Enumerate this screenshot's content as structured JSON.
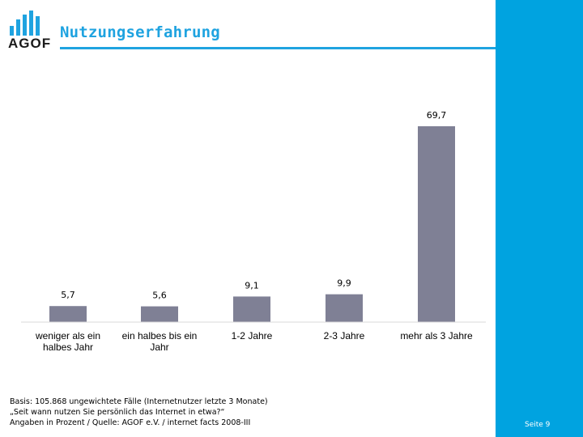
{
  "header": {
    "logo_text": "AGOF",
    "title": "Nutzungserfahrung"
  },
  "colors": {
    "accent": "#1fa3e0",
    "band": "#00a3e0",
    "bar": "#7f8095"
  },
  "chart_data": {
    "type": "bar",
    "title": "Nutzungserfahrung",
    "categories": [
      [
        "weniger als ein",
        "halbes Jahr"
      ],
      [
        "ein halbes bis ein",
        "Jahr"
      ],
      [
        "1-2 Jahre"
      ],
      [
        "2-3 Jahre"
      ],
      [
        "mehr als 3 Jahre"
      ]
    ],
    "values": [
      5.7,
      5.6,
      9.1,
      9.9,
      69.7
    ],
    "value_labels": [
      "5,7",
      "5,6",
      "9,1",
      "9,9",
      "69,7"
    ],
    "xlabel": "",
    "ylabel": "",
    "ylim": [
      0,
      69.7
    ],
    "grid": false
  },
  "footnote": {
    "line1": "Basis: 105.868 ungewichtete Fälle (Internetnutzer letzte 3 Monate)",
    "line2": "„Seit wann nutzen Sie persönlich das Internet in etwa?“",
    "line3": "Angaben in Prozent / Quelle: AGOF e.V. / internet facts 2008-III"
  },
  "page": {
    "number_label": "Seite 9"
  }
}
